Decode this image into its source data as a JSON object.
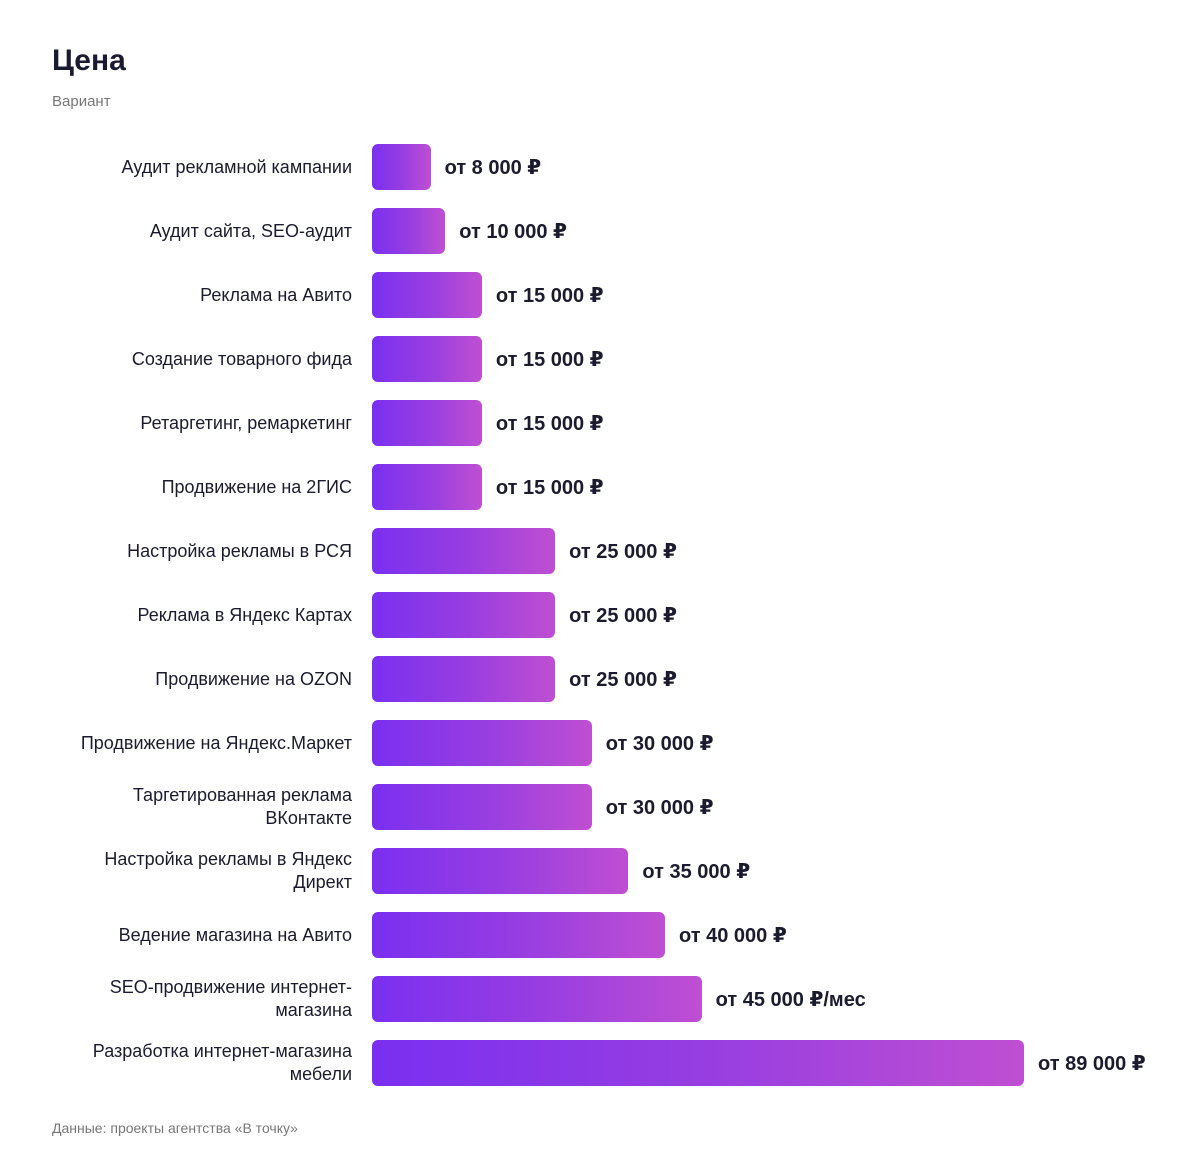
{
  "chart_data": {
    "type": "bar",
    "orientation": "horizontal",
    "title": "Цена",
    "subtitle": "Вариант",
    "categories": [
      "Аудит рекламной кампании",
      "Аудит сайта, SEO-аудит",
      "Реклама на Авито",
      "Создание товарного фида",
      "Ретаргетинг, ремаркетинг",
      "Продвижение на 2ГИС",
      "Настройка рекламы в РСЯ",
      "Реклама в Яндекс Картах",
      "Продвижение на OZON",
      "Продвижение на Яндекс.Маркет",
      "Таргетированная реклама ВКонтакте",
      "Настройка рекламы в Яндекс Директ",
      "Ведение магазина на Авито",
      "SEO-продвижение интернет-магазина",
      "Разработка интернет-магазина мебели"
    ],
    "values": [
      8000,
      10000,
      15000,
      15000,
      15000,
      15000,
      25000,
      25000,
      25000,
      30000,
      30000,
      35000,
      40000,
      45000,
      89000
    ],
    "value_labels": [
      "от 8 000 ₽",
      "от 10 000 ₽",
      "от 15 000 ₽",
      "от 15 000 ₽",
      "от 15 000 ₽",
      "от 15 000 ₽",
      "от 25 000 ₽",
      "от 25 000 ₽",
      "от 25 000 ₽",
      "от 30 000 ₽",
      "от 30 000 ₽",
      "от 35 000 ₽",
      "от 40 000 ₽",
      "от 45 000 ₽/мес",
      "от 89 000 ₽"
    ],
    "source": "Данные: проекты агентства «В точку»"
  }
}
